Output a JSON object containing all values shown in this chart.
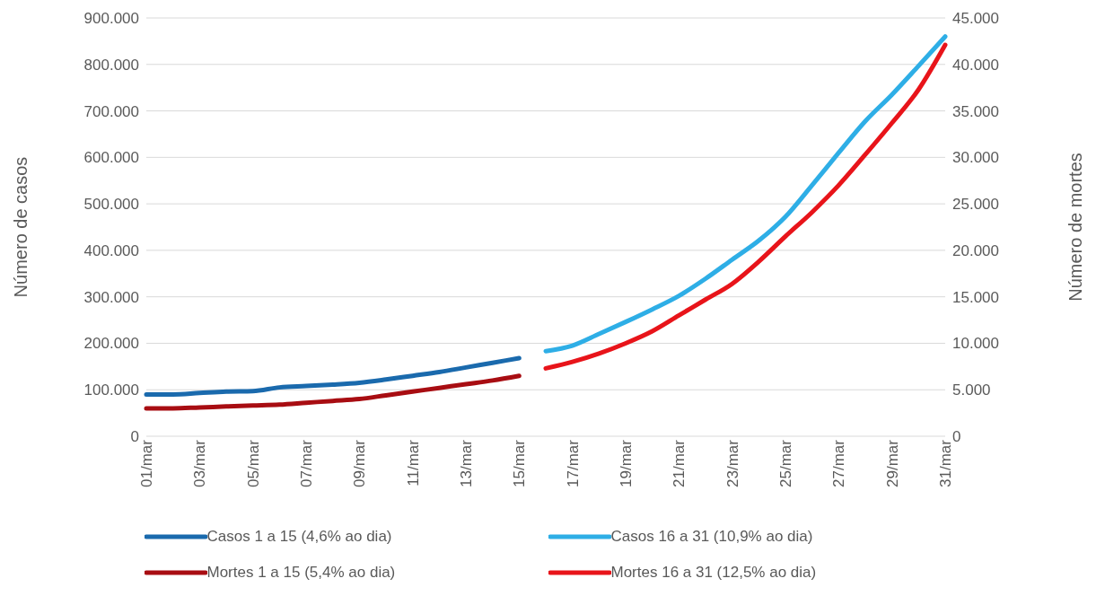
{
  "chart_data": {
    "type": "line",
    "categories": [
      "01/mar",
      null,
      "03/mar",
      null,
      "05/mar",
      null,
      "07/mar",
      null,
      "09/mar",
      null,
      "11/mar",
      null,
      "13/mar",
      null,
      "15/mar",
      null,
      "17/mar",
      null,
      "19/mar",
      null,
      "21/mar",
      null,
      "23/mar",
      null,
      "25/mar",
      null,
      "27/mar",
      null,
      "29/mar",
      null,
      "31/mar"
    ],
    "ylabel": "Número de casos",
    "y2label": "Número de mortes",
    "ylim": [
      0,
      900000
    ],
    "yticks": [
      {
        "value": 0,
        "label": "0"
      },
      {
        "value": 100000,
        "label": "100.000"
      },
      {
        "value": 200000,
        "label": "200.000"
      },
      {
        "value": 300000,
        "label": "300.000"
      },
      {
        "value": 400000,
        "label": "400.000"
      },
      {
        "value": 500000,
        "label": "500.000"
      },
      {
        "value": 600000,
        "label": "600.000"
      },
      {
        "value": 700000,
        "label": "700.000"
      },
      {
        "value": 800000,
        "label": "800.000"
      },
      {
        "value": 900000,
        "label": "900.000"
      }
    ],
    "y2lim": [
      0,
      45000
    ],
    "y2ticks": [
      {
        "value": 0,
        "label": "0"
      },
      {
        "value": 5000,
        "label": "5.000"
      },
      {
        "value": 10000,
        "label": "10.000"
      },
      {
        "value": 15000,
        "label": "15.000"
      },
      {
        "value": 20000,
        "label": "20.000"
      },
      {
        "value": 25000,
        "label": "25.000"
      },
      {
        "value": 30000,
        "label": "30.000"
      },
      {
        "value": 35000,
        "label": "35.000"
      },
      {
        "value": 40000,
        "label": "40.000"
      },
      {
        "value": 45000,
        "label": "45.000"
      }
    ],
    "grid": "y",
    "legend": "bottom",
    "series": [
      {
        "name": "Casos 1 a 15 (4,6% ao dia)",
        "color": "#1a6aad",
        "values": [
          90000,
          90000,
          93000,
          96000,
          97000,
          105000,
          108000,
          111000,
          115000,
          122000,
          130000,
          138000,
          148000,
          158000,
          168000,
          null,
          null,
          null,
          null,
          null,
          null,
          null,
          null,
          null,
          null,
          null,
          null,
          null,
          null,
          null,
          null
        ]
      },
      {
        "name": "Casos 16 a 31 (10,9% ao dia)",
        "color": "#2eaee6",
        "values": [
          null,
          null,
          null,
          null,
          null,
          null,
          null,
          null,
          null,
          null,
          null,
          null,
          null,
          null,
          null,
          183000,
          195000,
          220000,
          246000,
          273000,
          302000,
          339000,
          380000,
          421000,
          472000,
          540000,
          610000,
          678000,
          735000,
          797000,
          860000
        ]
      },
      {
        "name": "Mortes 1 a 15 (5,4% ao dia)",
        "color": "#a80d12",
        "axis": "y2",
        "values": [
          3000,
          3000,
          3100,
          3200,
          3300,
          3400,
          3600,
          3800,
          4000,
          4400,
          4800,
          5200,
          5600,
          6000,
          6500,
          null,
          null,
          null,
          null,
          null,
          null,
          null,
          null,
          null,
          null,
          null,
          null,
          null,
          null,
          null,
          null
        ]
      },
      {
        "name": "Mortes 16 a 31 (12,5% ao dia)",
        "color": "#e8141a",
        "axis": "y2",
        "values": [
          null,
          null,
          null,
          null,
          null,
          null,
          null,
          null,
          null,
          null,
          null,
          null,
          null,
          null,
          null,
          7300,
          8000,
          8900,
          10000,
          11300,
          13000,
          14700,
          16400,
          18800,
          21500,
          24100,
          27000,
          30300,
          33700,
          37300,
          42100
        ]
      }
    ]
  }
}
